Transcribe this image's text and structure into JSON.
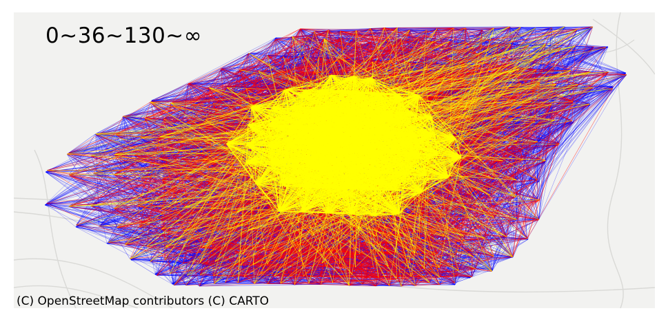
{
  "legend": {
    "label": "0~36~130~∞"
  },
  "attribution": {
    "text": "(C) OpenStreetMap contributors (C) CARTO"
  },
  "flow_classes": [
    {
      "range": "0~36",
      "color": "#0000ff"
    },
    {
      "range": "36~130",
      "color": "#ff0000"
    },
    {
      "range": "130~∞",
      "color": "#ffff00"
    }
  ],
  "basemap": {
    "style": "light",
    "background": "#f2f2f0",
    "road_color": "#d9d9d6"
  }
}
